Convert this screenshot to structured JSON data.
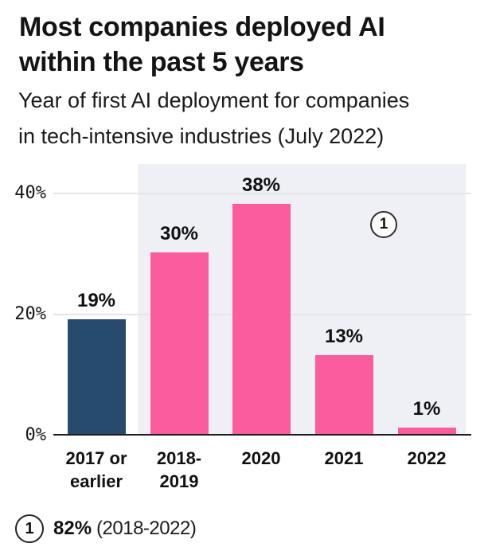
{
  "header": {
    "title_lines": [
      "Most companies deployed AI",
      "within the past 5 years"
    ],
    "subtitle_lines": [
      "Year of first AI deployment for companies",
      "in tech-intensive industries (July 2022)"
    ]
  },
  "chart_data": {
    "type": "bar",
    "title": "Most companies deployed AI within the past 5 years",
    "subtitle": "Year of first AI deployment for companies in tech-intensive industries (July 2022)",
    "categories": [
      "2017 or\nearlier",
      "2018-\n2019",
      "2020",
      "2021",
      "2022"
    ],
    "values": [
      19,
      30,
      38,
      13,
      1
    ],
    "value_labels": [
      "19%",
      "30%",
      "38%",
      "13%",
      "1%"
    ],
    "bar_colors": [
      "#264b6e",
      "#fb5c9d",
      "#fb5c9d",
      "#fb5c9d",
      "#fb5c9d"
    ],
    "yticks": [
      "40%",
      "20%",
      "0%"
    ],
    "ylabel": "",
    "xlabel": "",
    "ylim": [
      0,
      45
    ],
    "grid": "horizontal",
    "highlight_region": {
      "covers_categories": [
        "2018-2019",
        "2020",
        "2021",
        "2022"
      ],
      "color": "#eef0f5"
    },
    "annotation": {
      "marker": "1",
      "refers_to": "2018-2022 highlighted region"
    }
  },
  "footnote": {
    "marker": "1",
    "value": "82%",
    "note": "(2018-2022)"
  },
  "colors": {
    "accent_pink": "#fb5c9d",
    "accent_navy": "#264b6e",
    "highlight_bg": "#eef0f5",
    "gridline": "#e3e5e9",
    "axis": "#1d1d1d",
    "text": "#141414"
  }
}
